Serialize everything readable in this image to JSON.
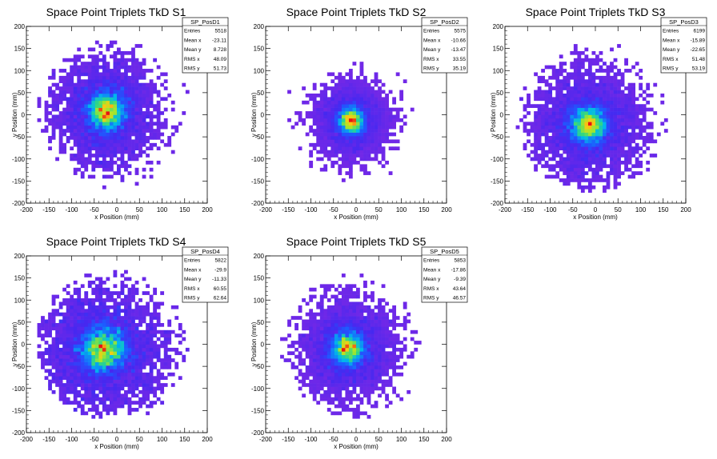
{
  "chart_data": [
    {
      "type": "heatmap",
      "title": "Space Point Triplets TkD S1",
      "xlabel": "x Position (mm)",
      "ylabel": "y Position (mm)",
      "xlim": [
        -200,
        200
      ],
      "ylim": [
        -200,
        200
      ],
      "xticks": [
        -200,
        -150,
        -100,
        -50,
        0,
        50,
        100,
        150,
        200
      ],
      "yticks": [
        -200,
        -150,
        -100,
        -50,
        0,
        50,
        100,
        150,
        200
      ],
      "grid": false,
      "stats": {
        "name": "SP_PosD1",
        "rows": [
          {
            "label": "Entries",
            "value": "5518"
          },
          {
            "label": "Mean x",
            "value": "-23.11"
          },
          {
            "label": "Mean y",
            "value": "8.728"
          },
          {
            "label": "RMS x",
            "value": "48.09"
          },
          {
            "label": "RMS y",
            "value": "51.73"
          }
        ]
      }
    },
    {
      "type": "heatmap",
      "title": "Space Point Triplets TkD S2",
      "xlabel": "x Position (mm)",
      "ylabel": "y Position (mm)",
      "xlim": [
        -200,
        200
      ],
      "ylim": [
        -200,
        200
      ],
      "xticks": [
        -200,
        -150,
        -100,
        -50,
        0,
        50,
        100,
        150,
        200
      ],
      "yticks": [
        -200,
        -150,
        -100,
        -50,
        0,
        50,
        100,
        150,
        200
      ],
      "grid": false,
      "stats": {
        "name": "SP_PosD2",
        "rows": [
          {
            "label": "Entries",
            "value": "5575"
          },
          {
            "label": "Mean x",
            "value": "-10.66"
          },
          {
            "label": "Mean y",
            "value": "-13.47"
          },
          {
            "label": "RMS x",
            "value": "33.55"
          },
          {
            "label": "RMS y",
            "value": "35.19"
          }
        ]
      }
    },
    {
      "type": "heatmap",
      "title": "Space Point Triplets TkD S3",
      "xlabel": "x Position (mm)",
      "ylabel": "y Position (mm)",
      "xlim": [
        -200,
        200
      ],
      "ylim": [
        -200,
        200
      ],
      "xticks": [
        -200,
        -150,
        -100,
        -50,
        0,
        50,
        100,
        150,
        200
      ],
      "yticks": [
        -200,
        -150,
        -100,
        -50,
        0,
        50,
        100,
        150,
        200
      ],
      "grid": false,
      "stats": {
        "name": "SP_PosD3",
        "rows": [
          {
            "label": "Entries",
            "value": "6199"
          },
          {
            "label": "Mean x",
            "value": "-15.89"
          },
          {
            "label": "Mean y",
            "value": "-22.65"
          },
          {
            "label": "RMS x",
            "value": "51.48"
          },
          {
            "label": "RMS y",
            "value": "53.19"
          }
        ]
      }
    },
    {
      "type": "heatmap",
      "title": "Space Point Triplets TkD S4",
      "xlabel": "x Position (mm)",
      "ylabel": "y Position (mm)",
      "xlim": [
        -200,
        200
      ],
      "ylim": [
        -200,
        200
      ],
      "xticks": [
        -200,
        -150,
        -100,
        -50,
        0,
        50,
        100,
        150,
        200
      ],
      "yticks": [
        -200,
        -150,
        -100,
        -50,
        0,
        50,
        100,
        150,
        200
      ],
      "grid": false,
      "stats": {
        "name": "SP_PosD4",
        "rows": [
          {
            "label": "Entries",
            "value": "5822"
          },
          {
            "label": "Mean x",
            "value": "-29.9"
          },
          {
            "label": "Mean y",
            "value": "-11.33"
          },
          {
            "label": "RMS x",
            "value": "60.55"
          },
          {
            "label": "RMS y",
            "value": "62.64"
          }
        ]
      }
    },
    {
      "type": "heatmap",
      "title": "Space Point Triplets TkD S5",
      "xlabel": "x Position (mm)",
      "ylabel": "y Position (mm)",
      "xlim": [
        -200,
        200
      ],
      "ylim": [
        -200,
        200
      ],
      "xticks": [
        -200,
        -150,
        -100,
        -50,
        0,
        50,
        100,
        150,
        200
      ],
      "yticks": [
        -200,
        -150,
        -100,
        -50,
        0,
        50,
        100,
        150,
        200
      ],
      "grid": false,
      "stats": {
        "name": "SP_PosD5",
        "rows": [
          {
            "label": "Entries",
            "value": "5853"
          },
          {
            "label": "Mean x",
            "value": "-17.86"
          },
          {
            "label": "Mean y",
            "value": "-9.39"
          },
          {
            "label": "RMS x",
            "value": "43.64"
          },
          {
            "label": "RMS y",
            "value": "46.57"
          }
        ]
      }
    }
  ]
}
